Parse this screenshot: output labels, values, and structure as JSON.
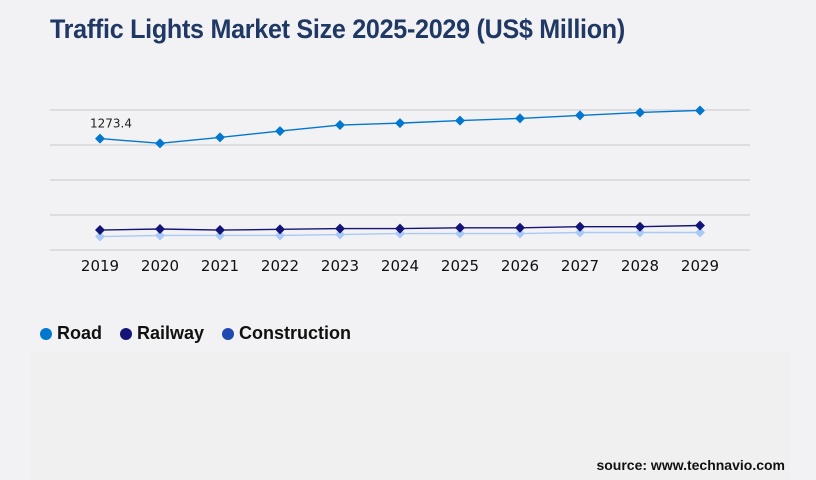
{
  "title": "Traffic Lights Market Size 2025-2029 (US$ Million)",
  "source": "source: www.technavio.com",
  "chart_data": {
    "type": "line",
    "title": "Traffic Lights Market Size 2025-2029 (US$ Million)",
    "categories": [
      "2019",
      "2020",
      "2021",
      "2022",
      "2023",
      "2024",
      "2025",
      "2026",
      "2027",
      "2028",
      "2029"
    ],
    "ylim": [
      0,
      1600
    ],
    "grid": true,
    "legend": "bottom-left",
    "series": [
      {
        "name": "Road",
        "color": "#0277cf",
        "values": [
          1273.4,
          1219,
          1287,
          1359,
          1428,
          1450,
          1479,
          1504,
          1538,
          1572,
          1595
        ]
      },
      {
        "name": "Railway",
        "color": "#141478",
        "values": [
          228,
          240,
          228,
          236,
          245,
          245,
          254,
          254,
          266,
          266,
          280
        ]
      },
      {
        "name": "Construction",
        "color": "#a9c9f7",
        "legend_color": "#1f48b0",
        "values": [
          154,
          166,
          166,
          166,
          177,
          188,
          188,
          188,
          200,
          200,
          200
        ]
      }
    ],
    "annotations": [
      {
        "series": "Road",
        "category": "2019",
        "text": "1273.4"
      }
    ]
  }
}
